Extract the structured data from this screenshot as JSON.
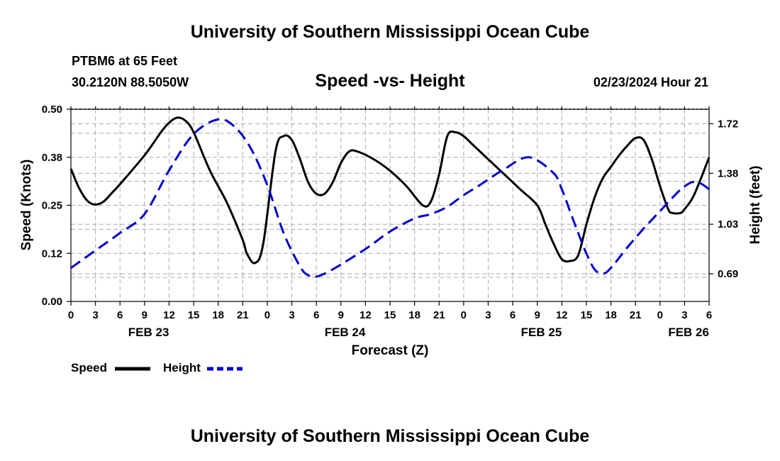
{
  "header": {
    "title": "University of Southern Mississippi Ocean Cube",
    "station": "PTBM6 at 65 Feet",
    "coords": "30.2120N  88.5050W",
    "timestamp": "02/23/2024 Hour 21",
    "footer_title": "University of Southern Mississippi Ocean Cube"
  },
  "colors": {
    "speed": "#000000",
    "height": "#0000cc",
    "grid": "#aaaaaa"
  },
  "chart_data": {
    "type": "line",
    "title": "Speed -vs- Height",
    "xlabel": "Forecast (Z)",
    "ylabel": "Speed (Knots)",
    "y2label": "Height (feet)",
    "xlim": [
      0,
      78
    ],
    "ylim": [
      0.0,
      0.5
    ],
    "y2lim": [
      0.5,
      1.82
    ],
    "grid": true,
    "xticks": [
      0,
      3,
      6,
      9,
      12,
      15,
      18,
      21,
      24,
      27,
      30,
      33,
      36,
      39,
      42,
      45,
      48,
      51,
      54,
      57,
      60,
      63,
      66,
      69,
      72,
      75,
      78
    ],
    "xtick_labels": [
      "0",
      "3",
      "6",
      "9",
      "12",
      "15",
      "18",
      "21",
      "0",
      "3",
      "6",
      "9",
      "12",
      "15",
      "18",
      "21",
      "0",
      "3",
      "6",
      "9",
      "12",
      "15",
      "18",
      "21",
      "0",
      "3",
      "6"
    ],
    "yticks": [
      0.0,
      0.125,
      0.25,
      0.375,
      0.5
    ],
    "ytick_labels": [
      "0.00",
      "0.12",
      "0.25",
      "0.38",
      "0.50"
    ],
    "y2ticks": [
      0.69,
      1.03,
      1.38,
      1.72
    ],
    "y2tick_labels": [
      "0.69",
      "1.03",
      "1.38",
      "1.72"
    ],
    "day_labels": [
      {
        "x": 9.5,
        "label": "FEB 23"
      },
      {
        "x": 33.5,
        "label": "FEB 24"
      },
      {
        "x": 57.5,
        "label": "FEB 25"
      },
      {
        "x": 75.5,
        "label": "FEB 26"
      }
    ],
    "series": [
      {
        "name": "Speed",
        "axis": "left",
        "style": "solid",
        "x": [
          0,
          1,
          2,
          3,
          4,
          5,
          6,
          9,
          11,
          12,
          13,
          14,
          15,
          17,
          19,
          21,
          21.5,
          22.5,
          23.5,
          25,
          26,
          27,
          28,
          29,
          30,
          31,
          32,
          33,
          34,
          35,
          37,
          39,
          41,
          43,
          44,
          45,
          46,
          47,
          48,
          49,
          51,
          53,
          55,
          57,
          58,
          59,
          60,
          61,
          62,
          63,
          64,
          65,
          66,
          67,
          68,
          69,
          70,
          71,
          72,
          73,
          73.5,
          74.5,
          75,
          76,
          77,
          78
        ],
        "values": [
          0.345,
          0.295,
          0.262,
          0.252,
          0.26,
          0.282,
          0.305,
          0.38,
          0.44,
          0.465,
          0.478,
          0.47,
          0.44,
          0.34,
          0.26,
          0.16,
          0.125,
          0.1,
          0.15,
          0.39,
          0.43,
          0.42,
          0.37,
          0.31,
          0.28,
          0.28,
          0.31,
          0.36,
          0.39,
          0.39,
          0.37,
          0.34,
          0.3,
          0.25,
          0.26,
          0.33,
          0.43,
          0.44,
          0.43,
          0.41,
          0.37,
          0.33,
          0.29,
          0.25,
          0.2,
          0.15,
          0.11,
          0.105,
          0.12,
          0.2,
          0.27,
          0.32,
          0.35,
          0.38,
          0.405,
          0.425,
          0.42,
          0.37,
          0.3,
          0.24,
          0.23,
          0.23,
          0.24,
          0.27,
          0.32,
          0.375
        ]
      },
      {
        "name": "Height",
        "axis": "right",
        "style": "dashed",
        "x": [
          0,
          3,
          6,
          9,
          12,
          15,
          18,
          20,
          22,
          24,
          26,
          28,
          29,
          30,
          32,
          36,
          39,
          42,
          44,
          46,
          48,
          50,
          53,
          56,
          59,
          60,
          61,
          62,
          63,
          64,
          65,
          66,
          68,
          70,
          72,
          74,
          75,
          76,
          77,
          78
        ],
        "values": [
          0.73,
          0.85,
          0.97,
          1.1,
          1.4,
          1.65,
          1.75,
          1.7,
          1.55,
          1.3,
          0.97,
          0.74,
          0.68,
          0.67,
          0.72,
          0.86,
          0.98,
          1.07,
          1.1,
          1.15,
          1.23,
          1.3,
          1.41,
          1.49,
          1.38,
          1.27,
          1.12,
          0.97,
          0.83,
          0.72,
          0.69,
          0.73,
          0.87,
          1.0,
          1.12,
          1.24,
          1.29,
          1.32,
          1.31,
          1.27
        ]
      }
    ]
  },
  "legend": {
    "speed_label": "Speed",
    "height_label": "Height"
  }
}
